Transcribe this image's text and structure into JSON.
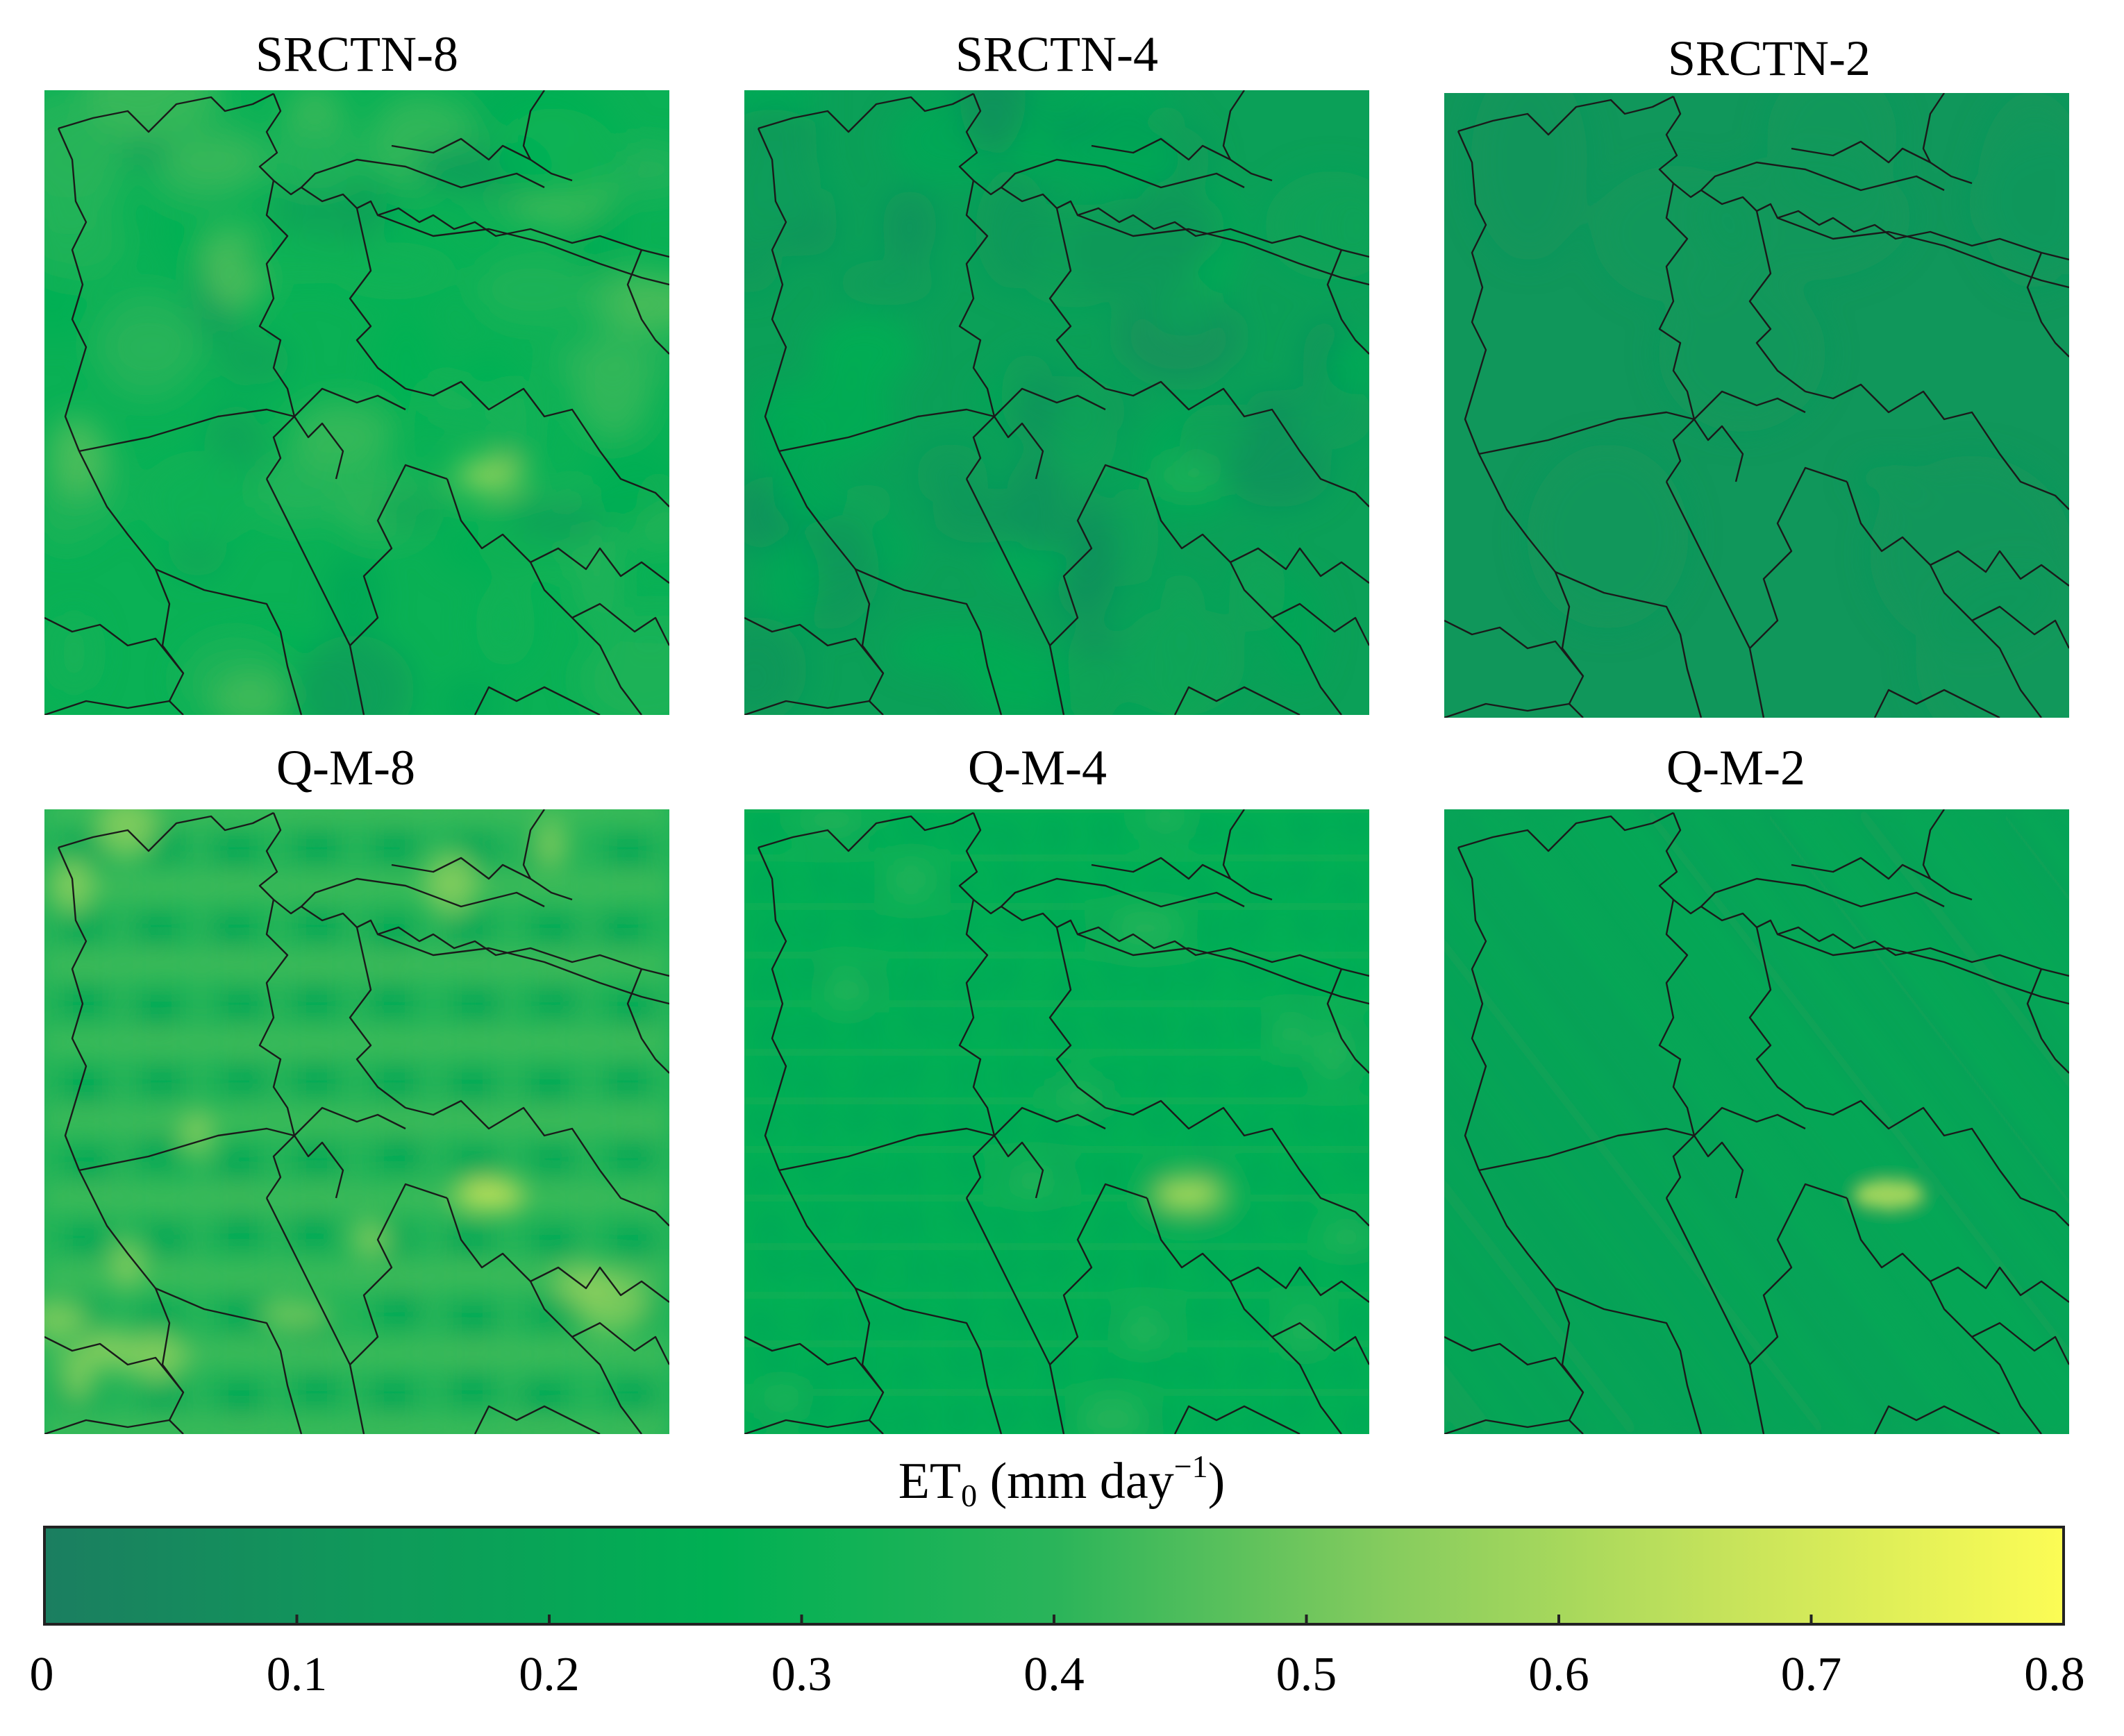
{
  "figure": {
    "panels": [
      {
        "id": "srctn-8",
        "title": "SRCTN-8",
        "base": 0.3,
        "variation": 0.18,
        "pattern": "blotchy",
        "hotspot": 0.62
      },
      {
        "id": "srctn-4",
        "title": "SRCTN-4",
        "base": 0.17,
        "variation": 0.1,
        "pattern": "blotchy",
        "hotspot": 0.38
      },
      {
        "id": "srctn-2",
        "title": "SRCTN-2",
        "base": 0.12,
        "variation": 0.02,
        "pattern": "flat",
        "hotspot": 0.13
      },
      {
        "id": "qm-8",
        "title": "Q-M-8",
        "base": 0.33,
        "variation": 0.2,
        "pattern": "grid",
        "hotspot": 0.68
      },
      {
        "id": "qm-4",
        "title": "Q-M-4",
        "base": 0.26,
        "variation": 0.12,
        "pattern": "grid",
        "hotspot": 0.64
      },
      {
        "id": "qm-2",
        "title": "Q-M-2",
        "base": 0.19,
        "variation": 0.05,
        "pattern": "stripes",
        "hotspot": 0.6
      }
    ],
    "colorbar": {
      "label_main": "ET",
      "label_sub": "0",
      "label_unit": " (mm day",
      "label_sup": "−1",
      "label_close": ")",
      "min": 0,
      "max": 0.8,
      "ticks": [
        "0",
        "0.1",
        "0.2",
        "0.3",
        "0.4",
        "0.5",
        "0.6",
        "0.7",
        "0.8"
      ],
      "tick_values": [
        0,
        0.1,
        0.2,
        0.3,
        0.4,
        0.5,
        0.6,
        0.7,
        0.8
      ],
      "colors": [
        "#1b7e60",
        "#0f9a5a",
        "#00b053",
        "#2ab45a",
        "#86cc5e",
        "#c6e35b",
        "#fcfc55"
      ]
    }
  }
}
